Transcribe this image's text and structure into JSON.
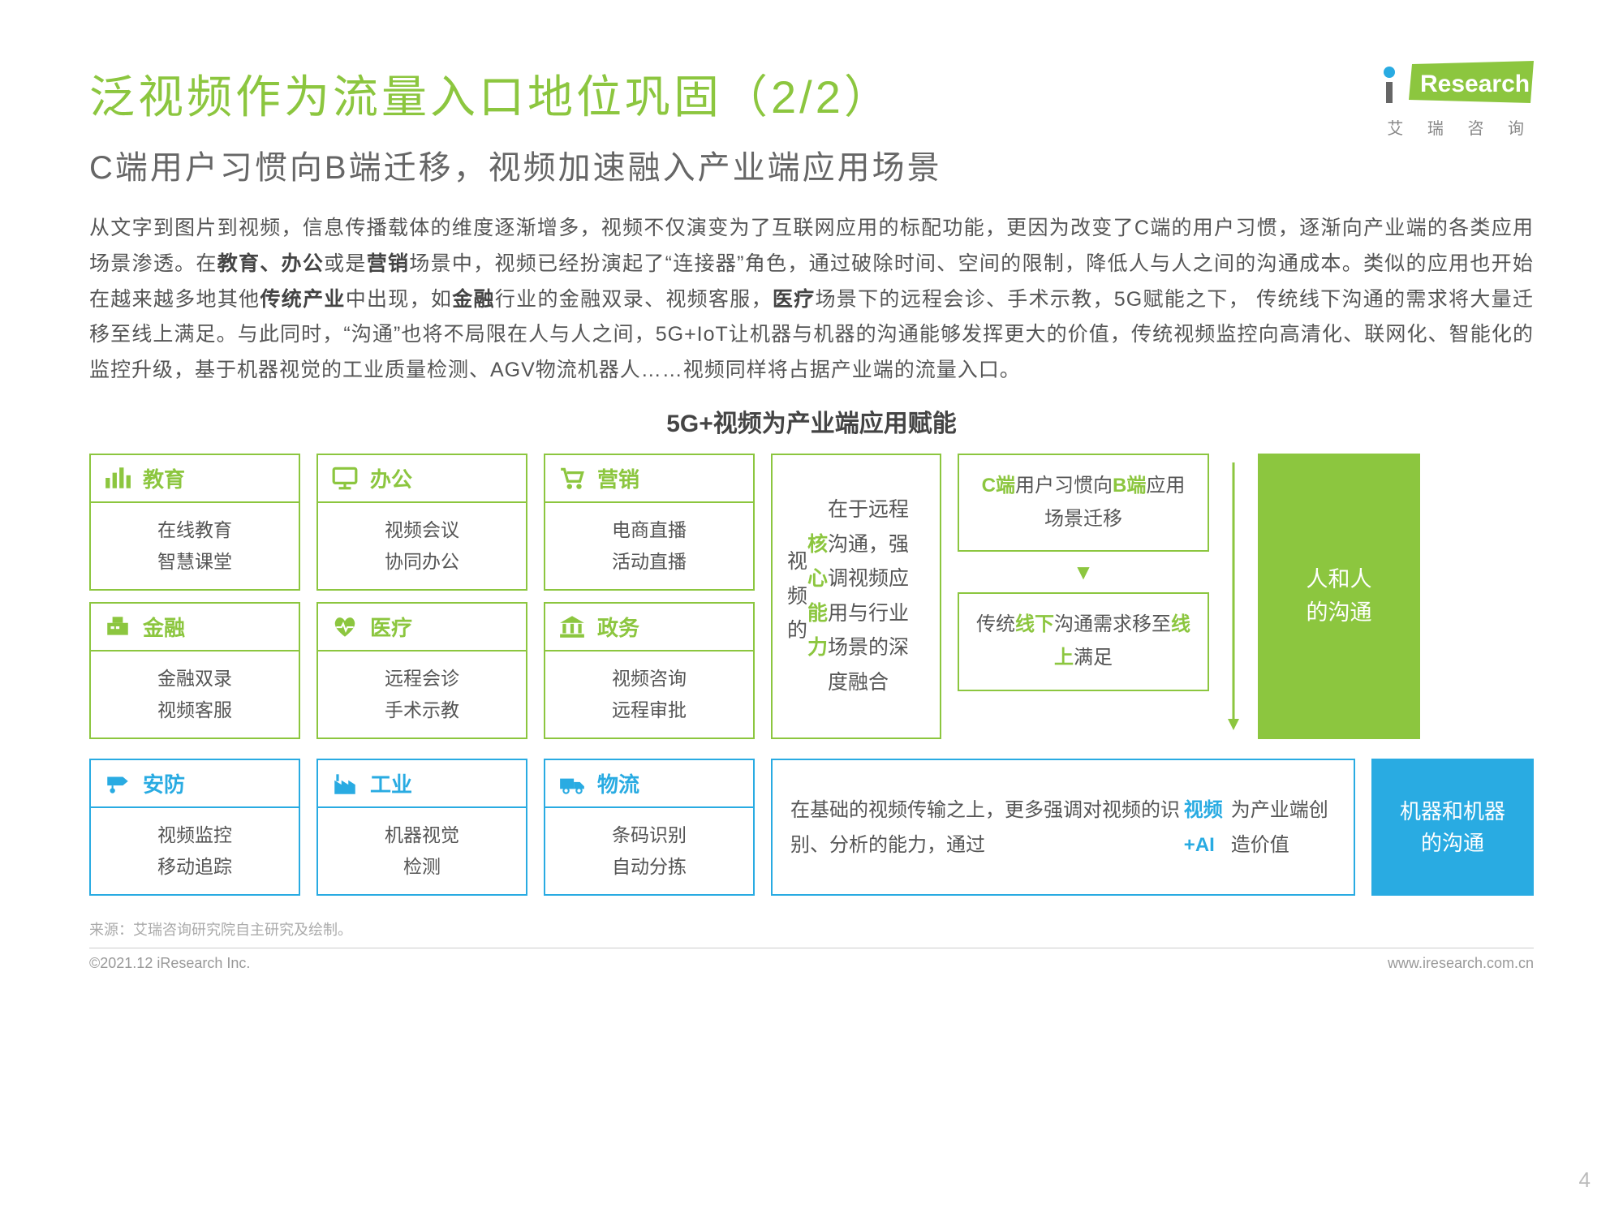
{
  "colors": {
    "green": "#8cc63f",
    "blue": "#29abe2",
    "text": "#555555",
    "subtitle": "#666666",
    "muted": "#aaaaaa"
  },
  "logo": {
    "brand": "iResearch",
    "sub": "艾 瑞 咨 询"
  },
  "title": "泛视频作为流量入口地位巩固（2/2）",
  "subtitle": "C端用户习惯向B端迁移，视频加速融入产业端应用场景",
  "body_html": "从文字到图片到视频，信息传播载体的维度逐渐增多，视频不仅演变为了互联网应用的标配功能，更因为改变了C端的用户习惯，逐渐向产业端的各类应用场景渗透。在<b>教育、办公</b>或是<b>营销</b>场景中，视频已经扮演起了“连接器”角色，通过破除时间、空间的限制，降低人与人之间的沟通成本。类似的应用也开始在越来越多地其他<b>传统产业</b>中出现，如<b>金融</b>行业的金融双录、视频客服，<b>医疗</b>场景下的远程会诊、手术示教，5G赋能之下，  传统线下沟通的需求将大量迁移至线上满足。与此同时，“沟通”也将不局限在人与人之间，5G+IoT让机器与机器的沟通能够发挥更大的价值，传统视频监控向高清化、联网化、智能化的监控升级，基于机器视觉的工业质量检测、AGV物流机器人……视频同样将占据产业端的流量入口。",
  "section_title": "5G+视频为产业端应用赋能",
  "cards_green": [
    {
      "icon": "bars",
      "title": "教育",
      "lines": [
        "在线教育",
        "智慧课堂"
      ]
    },
    {
      "icon": "screen",
      "title": "办公",
      "lines": [
        "视频会议",
        "协同办公"
      ]
    },
    {
      "icon": "cart",
      "title": "营销",
      "lines": [
        "电商直播",
        "活动直播"
      ]
    },
    {
      "icon": "register",
      "title": "金融",
      "lines": [
        "金融双录",
        "视频客服"
      ]
    },
    {
      "icon": "heart",
      "title": "医疗",
      "lines": [
        "远程会诊",
        "手术示教"
      ]
    },
    {
      "icon": "bank",
      "title": "政务",
      "lines": [
        "视频咨询",
        "远程审批"
      ]
    }
  ],
  "cards_blue": [
    {
      "icon": "camera",
      "title": "安防",
      "lines": [
        "视频监控",
        "移动追踪"
      ]
    },
    {
      "icon": "factory",
      "title": "工业",
      "lines": [
        "机器视觉",
        "检测"
      ]
    },
    {
      "icon": "truck",
      "title": "物流",
      "lines": [
        "条码识别",
        "自动分拣"
      ]
    }
  ],
  "mid_box_html": "视频的<span class='hl'>核心能力</span>在于远程沟通，强调视频应用与行业场景的深度融合",
  "right1_html": "<span class='hl'>C端</span>用户习惯向<span class='hl'>B端</span>应用场景迁移",
  "right2_html": "传统<span class='hl'>线下</span>沟通需求移至<span class='hl'>线上</span>满足",
  "pill_green": "人和人\n的沟通",
  "blue_wide_html": "在基础的视频传输之上，更多强调对视频的识别、分析的能力，通过<span class='hl'>视频+AI</span>为产业端创造价值",
  "pill_blue": "机器和机器\n的沟通",
  "source": "来源：艾瑞咨询研究院自主研究及绘制。",
  "footer_left": "©2021.12 iResearch Inc.",
  "footer_right": "www.iresearch.com.cn",
  "page_num": "4"
}
